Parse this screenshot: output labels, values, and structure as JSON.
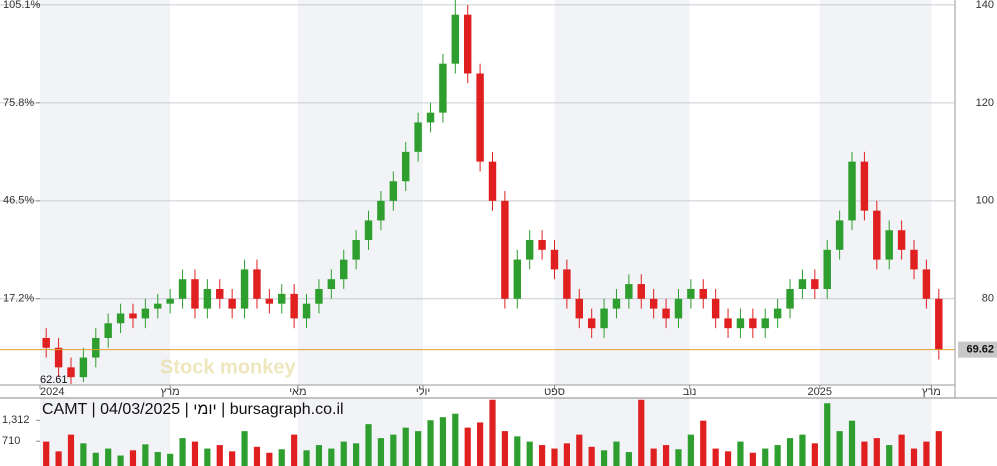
{
  "chart_data": {
    "type": "candlestick",
    "title": "CAMT | 04/03/2025 | יומי | bursagraph.co.il",
    "watermark": "Stock monkey",
    "up_color": "#2e9e2e",
    "down_color": "#e02020",
    "line_color": "#e0a030",
    "open": [
      72,
      70,
      66,
      64,
      68,
      72,
      75,
      77,
      76,
      78,
      79,
      80,
      84,
      78,
      82,
      80,
      78,
      86,
      80,
      79,
      81,
      76,
      79,
      82,
      84,
      88,
      92,
      96,
      100,
      104,
      110,
      116,
      118,
      128,
      138,
      126,
      108,
      100,
      80,
      88,
      92,
      90,
      86,
      80,
      76,
      74,
      78,
      80,
      83,
      80,
      78,
      76,
      80,
      82,
      80,
      76,
      74,
      76,
      74,
      76,
      78,
      82,
      84,
      82,
      90,
      96,
      108,
      98,
      88,
      94,
      90,
      86,
      80
    ],
    "high": [
      74,
      72,
      68,
      70,
      74,
      77,
      79,
      79,
      80,
      81,
      82,
      86,
      86,
      84,
      84,
      82,
      88,
      88,
      82,
      83,
      83,
      81,
      84,
      86,
      90,
      94,
      98,
      102,
      106,
      112,
      118,
      120,
      130,
      141,
      140,
      128,
      110,
      102,
      90,
      94,
      94,
      92,
      88,
      82,
      78,
      80,
      82,
      85,
      85,
      82,
      80,
      82,
      84,
      84,
      82,
      78,
      78,
      78,
      78,
      80,
      84,
      86,
      86,
      92,
      98,
      110,
      110,
      100,
      96,
      96,
      92,
      88,
      82
    ],
    "low": [
      68,
      64,
      62.61,
      63,
      66,
      70,
      73,
      74,
      74,
      76,
      77,
      78,
      76,
      76,
      78,
      76,
      76,
      78,
      77,
      77,
      74,
      74,
      77,
      80,
      82,
      86,
      90,
      94,
      98,
      102,
      108,
      114,
      116,
      126,
      124,
      106,
      98,
      78,
      78,
      86,
      88,
      84,
      78,
      74,
      72,
      72,
      76,
      78,
      78,
      76,
      74,
      74,
      78,
      78,
      74,
      72,
      72,
      72,
      72,
      74,
      76,
      80,
      80,
      80,
      88,
      94,
      96,
      86,
      86,
      88,
      84,
      78,
      67.6
    ],
    "close": [
      70,
      66,
      64,
      68,
      72,
      75,
      77,
      76,
      78,
      79,
      80,
      84,
      78,
      82,
      80,
      78,
      86,
      80,
      79,
      81,
      76,
      79,
      82,
      84,
      88,
      92,
      96,
      100,
      104,
      110,
      116,
      118,
      128,
      138,
      126,
      108,
      100,
      80,
      88,
      92,
      90,
      86,
      80,
      76,
      74,
      78,
      80,
      83,
      80,
      78,
      76,
      80,
      82,
      80,
      76,
      74,
      76,
      74,
      76,
      78,
      82,
      84,
      82,
      90,
      96,
      108,
      98,
      88,
      94,
      90,
      86,
      80,
      69.62
    ],
    "volume": [
      700,
      420,
      900,
      650,
      380,
      500,
      300,
      450,
      620,
      400,
      350,
      800,
      700,
      500,
      600,
      420,
      1000,
      550,
      380,
      480,
      900,
      450,
      600,
      500,
      700,
      650,
      1200,
      800,
      900,
      1100,
      1000,
      1312,
      1400,
      1500,
      1100,
      1250,
      1900,
      1000,
      850,
      700,
      600,
      500,
      650,
      900,
      550,
      450,
      700,
      400,
      1900,
      500,
      600,
      480,
      900,
      1300,
      500,
      420,
      700,
      380,
      500,
      600,
      800,
      900,
      650,
      1800,
      1000,
      1300,
      700,
      800,
      600,
      900,
      500,
      700,
      1000
    ],
    "ylim": [
      62.4,
      141
    ],
    "yticks": [
      {
        "value": 140,
        "label": "140"
      },
      {
        "value": 120,
        "label": "120"
      },
      {
        "value": 100,
        "label": "100"
      },
      {
        "value": 80,
        "label": "80"
      }
    ],
    "y_pct_ticks": [
      {
        "value": 140,
        "label": "105.1%"
      },
      {
        "value": 120,
        "label": "75.8%"
      },
      {
        "value": 100,
        "label": "46.5%"
      },
      {
        "value": 80,
        "label": "17.2%"
      }
    ],
    "xlim": [
      0,
      73
    ],
    "xticks": [
      {
        "value": 0,
        "label": "2024"
      },
      {
        "value": 10.5,
        "label": "מרץ"
      },
      {
        "value": 20.8,
        "label": "מאי"
      },
      {
        "value": 30.9,
        "label": "יולי"
      },
      {
        "value": 41.5,
        "label": "ספט"
      },
      {
        "value": 52.4,
        "label": "נוב"
      },
      {
        "value": 62.9,
        "label": "2025"
      },
      {
        "value": 71.9,
        "label": "מרץ"
      }
    ],
    "vlim": [
      0,
      1950
    ],
    "vticks": [
      {
        "value": 1312,
        "label": "1,312"
      },
      710
    ]
  }
}
